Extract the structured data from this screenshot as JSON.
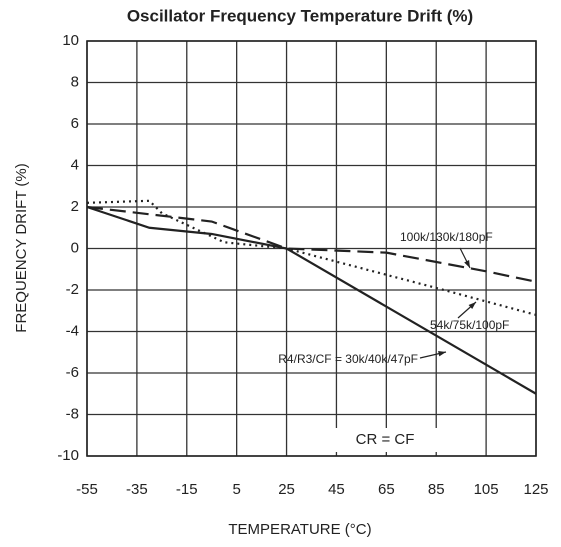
{
  "chart_data": {
    "type": "line",
    "title": "Oscillator Frequency Temperature Drift (%)",
    "x_label": "TEMPERATURE (°C)",
    "y_label": "FREQUENCY DRIFT (%)",
    "xlim": [
      -55,
      125
    ],
    "ylim": [
      -10,
      10
    ],
    "xticks": [
      -55,
      -35,
      -15,
      5,
      25,
      45,
      65,
      85,
      105,
      125
    ],
    "yticks": [
      -10,
      -8,
      -6,
      -4,
      -2,
      0,
      2,
      4,
      6,
      8,
      10
    ],
    "grid": true,
    "series": [
      {
        "name": "R4/R3/CF = 30k/40k/47pF",
        "color": "#222222",
        "line_style": "solid",
        "x": [
          -55,
          -30,
          -5,
          25,
          125
        ],
        "values": [
          2,
          1,
          0.7,
          0,
          -7
        ]
      },
      {
        "name": "100k/130k/180pF",
        "color": "#222222",
        "line_style": "dashed",
        "x": [
          -55,
          -5,
          25,
          65,
          105,
          125
        ],
        "values": [
          2,
          1.3,
          0,
          -0.2,
          -1.1,
          -1.6
        ]
      },
      {
        "name": "54k/75k/100pF",
        "color": "#222222",
        "line_style": "dotted",
        "x": [
          -55,
          -30,
          -25,
          0,
          25,
          85,
          125
        ],
        "values": [
          2.2,
          2.3,
          1.7,
          0.3,
          0,
          -1.9,
          -3.2
        ]
      }
    ],
    "annotations": [
      "CR = CF"
    ]
  }
}
